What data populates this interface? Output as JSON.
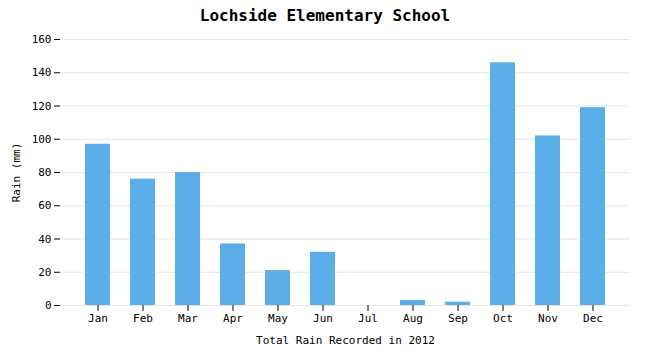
{
  "chart_data": {
    "type": "bar",
    "title": "Lochside Elementary School",
    "xlabel": "Total Rain Recorded in 2012",
    "ylabel": "Rain (mm)",
    "categories": [
      "Jan",
      "Feb",
      "Mar",
      "Apr",
      "May",
      "Jun",
      "Jul",
      "Aug",
      "Sep",
      "Oct",
      "Nov",
      "Dec"
    ],
    "values": [
      97,
      76,
      80,
      37,
      21,
      32,
      0,
      3,
      2,
      146,
      102,
      119
    ],
    "color": "#5BAEE8",
    "ylim": [
      0,
      160
    ],
    "yticks": [
      0,
      20,
      40,
      60,
      80,
      100,
      120,
      140,
      160
    ],
    "grid": true
  }
}
